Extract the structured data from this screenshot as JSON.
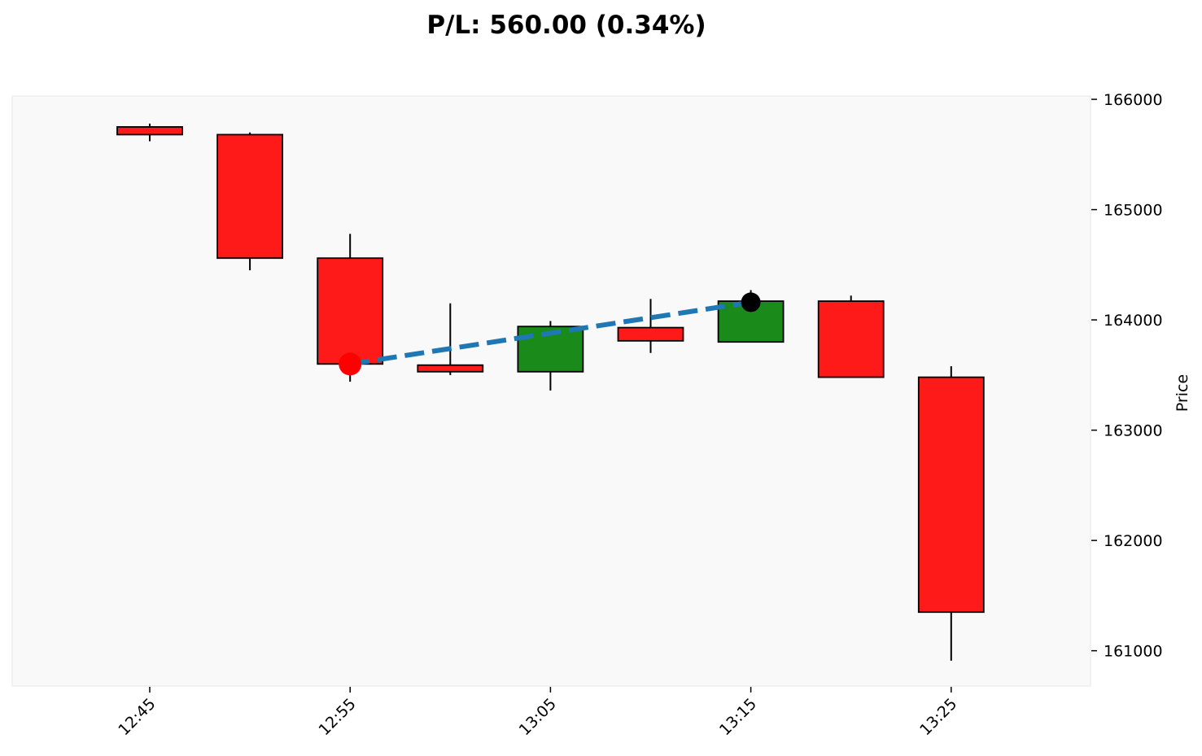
{
  "chart_data": {
    "type": "candlestick",
    "title": "P/L: 560.00 (0.34%)",
    "ylabel": "Price",
    "ylim": [
      160680,
      166030
    ],
    "y_ticks": [
      161000,
      162000,
      163000,
      164000,
      165000,
      166000
    ],
    "y_tick_labels": [
      "161000",
      "162000",
      "163000",
      "164000",
      "165000",
      "166000"
    ],
    "x_tick_labels": [
      "12:45",
      "12:55",
      "13:05",
      "13:15",
      "13:25"
    ],
    "x_tick_indices": [
      0,
      2,
      4,
      6,
      8
    ],
    "times": [
      "12:45",
      "12:50",
      "12:55",
      "13:00",
      "13:05",
      "13:10",
      "13:15",
      "13:20",
      "13:25"
    ],
    "candles": [
      {
        "time": "12:45",
        "open": 165750,
        "high": 165780,
        "low": 165620,
        "close": 165680
      },
      {
        "time": "12:50",
        "open": 165680,
        "high": 165700,
        "low": 164450,
        "close": 164560
      },
      {
        "time": "12:55",
        "open": 164560,
        "high": 164780,
        "low": 163440,
        "close": 163600
      },
      {
        "time": "13:00",
        "open": 163590,
        "high": 164150,
        "low": 163500,
        "close": 163530
      },
      {
        "time": "13:05",
        "open": 163530,
        "high": 163990,
        "low": 163360,
        "close": 163940
      },
      {
        "time": "13:10",
        "open": 163930,
        "high": 164190,
        "low": 163700,
        "close": 163810
      },
      {
        "time": "13:15",
        "open": 163800,
        "high": 164270,
        "low": 163800,
        "close": 164170
      },
      {
        "time": "13:20",
        "open": 164170,
        "high": 164220,
        "low": 163480,
        "close": 163480
      },
      {
        "time": "13:25",
        "open": 163480,
        "high": 163580,
        "low": 160910,
        "close": 161350
      }
    ],
    "trade": {
      "entry": {
        "time": "12:55",
        "price": 163600,
        "color": "#ff0000"
      },
      "exit": {
        "time": "13:15",
        "price": 164160,
        "color": "#000000"
      },
      "line_color": "#1f77b4"
    },
    "colors": {
      "up": "#1a8a1a",
      "down": "#ff1a1a",
      "edge": "#000000",
      "plot_bg": "#f9f9f9",
      "plot_border": "#eeeeee"
    },
    "grid": false
  }
}
